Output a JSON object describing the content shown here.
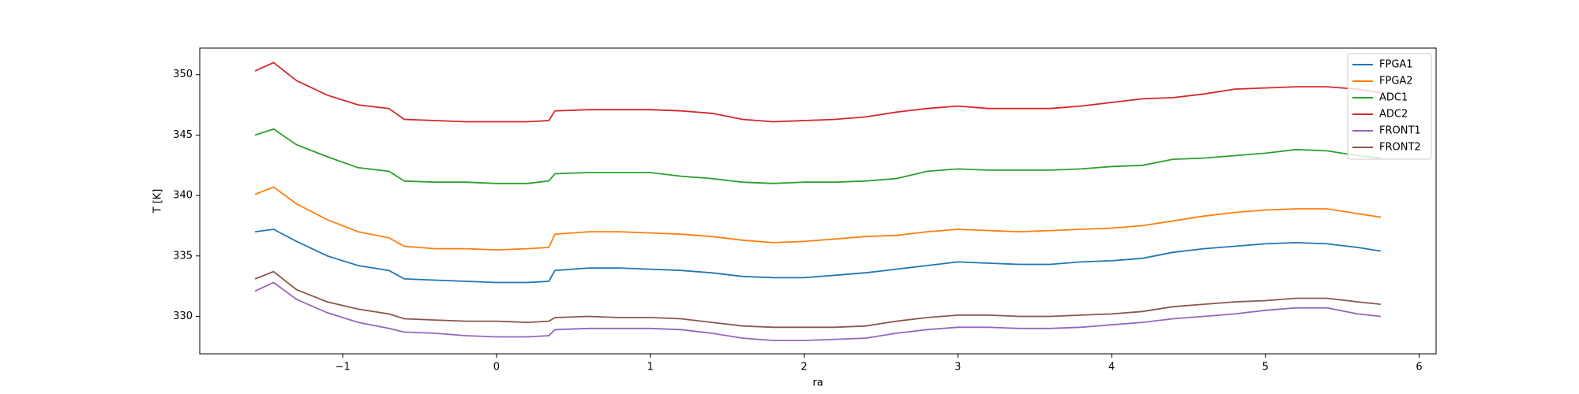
{
  "chart_data": {
    "type": "line",
    "xlabel": "ra",
    "ylabel": "T [K]",
    "x": [
      -1.57,
      -1.45,
      -1.3,
      -1.1,
      -0.9,
      -0.7,
      -0.6,
      -0.4,
      -0.2,
      0,
      0.2,
      0.34,
      0.38,
      0.6,
      0.8,
      1.0,
      1.2,
      1.4,
      1.6,
      1.8,
      2.0,
      2.2,
      2.4,
      2.6,
      2.8,
      3.0,
      3.2,
      3.4,
      3.6,
      3.8,
      4.0,
      4.2,
      4.4,
      4.6,
      4.8,
      5.0,
      5.2,
      5.4,
      5.6,
      5.75
    ],
    "series": [
      {
        "name": "FPGA1",
        "color": "#1f77b4",
        "values": [
          337,
          337.2,
          336.2,
          335,
          334.2,
          333.8,
          333.1,
          333,
          332.9,
          332.8,
          332.8,
          332.9,
          333.8,
          334,
          334,
          333.9,
          333.8,
          333.6,
          333.3,
          333.2,
          333.2,
          333.4,
          333.6,
          333.9,
          334.2,
          334.5,
          334.4,
          334.3,
          334.3,
          334.5,
          334.6,
          334.8,
          335.3,
          335.6,
          335.8,
          336,
          336.1,
          336,
          335.7,
          335.4
        ]
      },
      {
        "name": "FPGA2",
        "color": "#ff7f0e",
        "values": [
          340.1,
          340.7,
          339.3,
          338,
          337,
          336.5,
          335.8,
          335.6,
          335.6,
          335.5,
          335.6,
          335.7,
          336.8,
          337,
          337,
          336.9,
          336.8,
          336.6,
          336.3,
          336.1,
          336.2,
          336.4,
          336.6,
          336.7,
          337,
          337.2,
          337.1,
          337,
          337.1,
          337.2,
          337.3,
          337.5,
          337.9,
          338.3,
          338.6,
          338.8,
          338.9,
          338.9,
          338.5,
          338.2
        ]
      },
      {
        "name": "ADC1",
        "color": "#2ca02c",
        "values": [
          345,
          345.5,
          344.2,
          343.2,
          342.3,
          342,
          341.2,
          341.1,
          341.1,
          341,
          341,
          341.2,
          341.8,
          341.9,
          341.9,
          341.9,
          341.6,
          341.4,
          341.1,
          341,
          341.1,
          341.1,
          341.2,
          341.4,
          342,
          342.2,
          342.1,
          342.1,
          342.1,
          342.2,
          342.4,
          342.5,
          343,
          343.1,
          343.3,
          343.5,
          343.8,
          343.7,
          343.3,
          343.1
        ]
      },
      {
        "name": "ADC2",
        "color": "#d62728",
        "values": [
          350.3,
          351,
          349.5,
          348.3,
          347.5,
          347.2,
          346.3,
          346.2,
          346.1,
          346.1,
          346.1,
          346.2,
          347,
          347.1,
          347.1,
          347.1,
          347,
          346.8,
          346.3,
          346.1,
          346.2,
          346.3,
          346.5,
          346.9,
          347.2,
          347.4,
          347.2,
          347.2,
          347.2,
          347.4,
          347.7,
          348,
          348.1,
          348.4,
          348.8,
          348.9,
          349,
          349,
          348.8,
          348.5
        ]
      },
      {
        "name": "FRONT1",
        "color": "#9467bd",
        "values": [
          332.1,
          332.8,
          331.4,
          330.3,
          329.5,
          329,
          328.7,
          328.6,
          328.4,
          328.3,
          328.3,
          328.4,
          328.9,
          329,
          329,
          329,
          328.9,
          328.6,
          328.2,
          328,
          328,
          328.1,
          328.2,
          328.6,
          328.9,
          329.1,
          329.1,
          329,
          329,
          329.1,
          329.3,
          329.5,
          329.8,
          330,
          330.2,
          330.5,
          330.7,
          330.7,
          330.2,
          330
        ]
      },
      {
        "name": "FRONT2",
        "color": "#8c564b",
        "values": [
          333.1,
          333.7,
          332.2,
          331.2,
          330.6,
          330.2,
          329.8,
          329.7,
          329.6,
          329.6,
          329.5,
          329.6,
          329.9,
          330,
          329.9,
          329.9,
          329.8,
          329.5,
          329.2,
          329.1,
          329.1,
          329.1,
          329.2,
          329.6,
          329.9,
          330.1,
          330.1,
          330,
          330,
          330.1,
          330.2,
          330.4,
          330.8,
          331,
          331.2,
          331.3,
          331.5,
          331.5,
          331.2,
          331
        ]
      }
    ],
    "xlim": [
      -1.93,
      6.11
    ],
    "ylim": [
      326.9,
      352.2
    ],
    "xticks": [
      {
        "value": -1,
        "label": "−1"
      },
      0,
      1,
      2,
      3,
      4,
      5,
      6
    ],
    "yticks": [
      330,
      335,
      340,
      345,
      350
    ],
    "legend": "upper right"
  }
}
